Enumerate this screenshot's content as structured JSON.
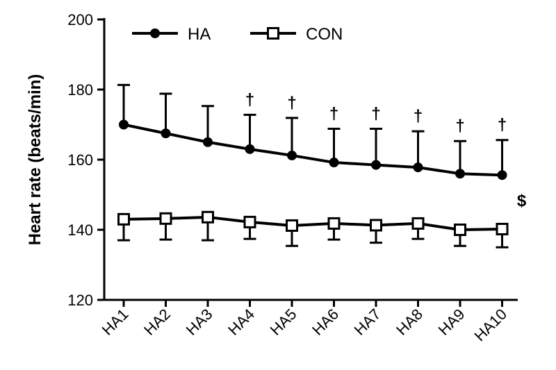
{
  "chart_data": {
    "type": "line",
    "title": "",
    "xlabel": "",
    "ylabel": "Heart rate (beats/min)",
    "ylim": [
      120,
      200
    ],
    "yticks": [
      120,
      140,
      160,
      180,
      200
    ],
    "categories": [
      "HA1",
      "HA2",
      "HA3",
      "HA4",
      "HA5",
      "HA6",
      "HA7",
      "HA8",
      "HA9",
      "HA10"
    ],
    "legend_position": "top-left",
    "grid": false,
    "series": [
      {
        "name": "HA",
        "marker": "filled-circle",
        "color": "#000000",
        "values": [
          170,
          167.5,
          165,
          163,
          161.2,
          159.2,
          158.5,
          157.8,
          156,
          155.6
        ],
        "error_upper": [
          181.3,
          178.8,
          175.3,
          172.8,
          171.9,
          168.8,
          168.8,
          168.1,
          165.3,
          165.6
        ],
        "error_direction": "up"
      },
      {
        "name": "CON",
        "marker": "open-square",
        "color": "#000000",
        "values": [
          143,
          143.2,
          143.6,
          142.2,
          141.2,
          141.8,
          141.3,
          141.8,
          140,
          140.2
        ],
        "error_lower": [
          137,
          137.2,
          137,
          137.4,
          135.4,
          137.2,
          136.3,
          137.4,
          135.4,
          135
        ],
        "error_direction": "down"
      }
    ],
    "annotations": {
      "significance_symbol": "†",
      "significance_categories": [
        "HA4",
        "HA5",
        "HA6",
        "HA7",
        "HA8",
        "HA9",
        "HA10"
      ],
      "group_symbol": "$"
    }
  }
}
